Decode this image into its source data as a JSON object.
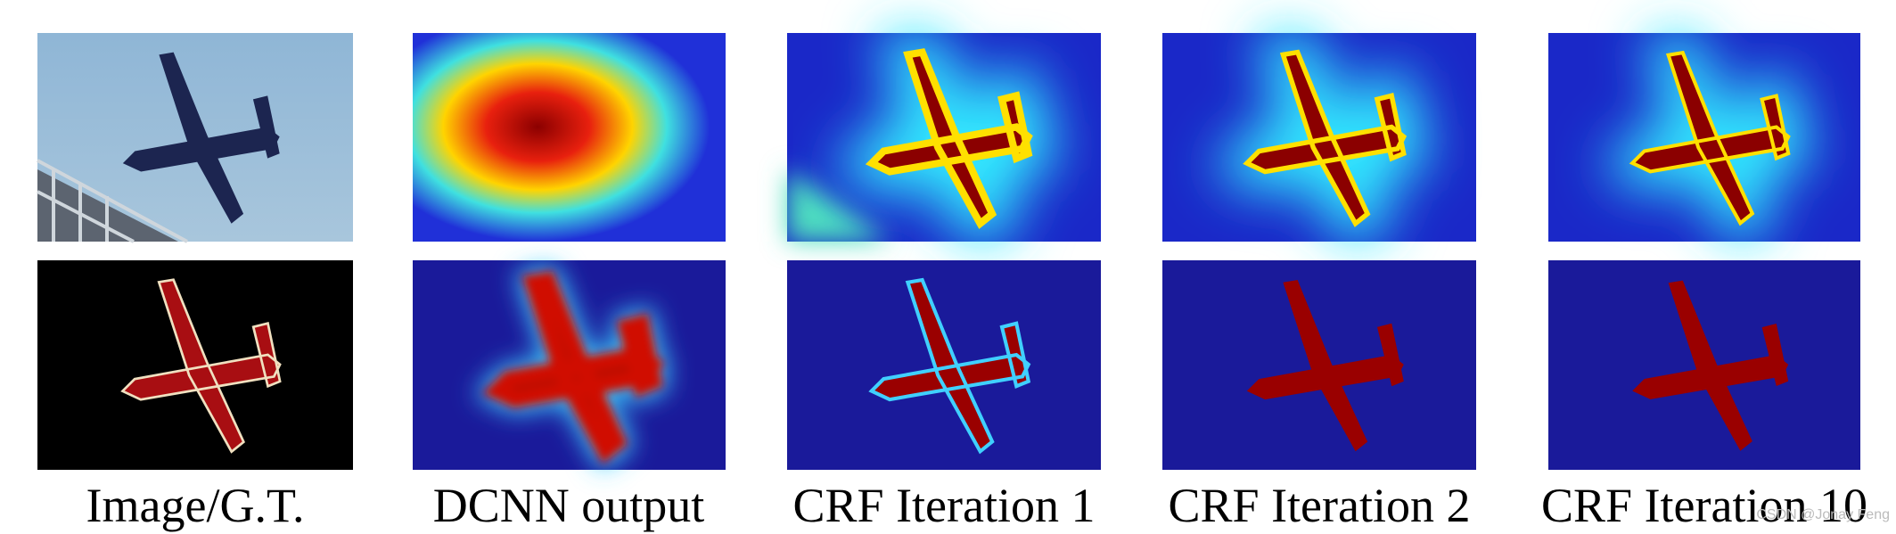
{
  "figure": {
    "captions": [
      "Image/G.T.",
      "DCNN output",
      "CRF Iteration 1",
      "CRF Iteration 2",
      "CRF Iteration 10"
    ],
    "watermark": "CSDN @Jonay Feng"
  }
}
